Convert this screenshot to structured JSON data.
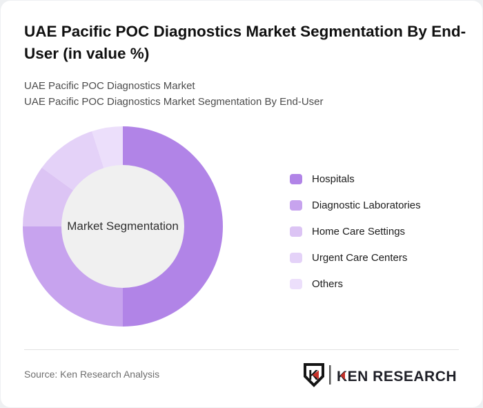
{
  "header": {
    "title": "UAE Pacific POC Diagnostics Market Segmentation By End-User (in value %)",
    "subtitle_line1": "UAE Pacific POC Diagnostics Market",
    "subtitle_line2": "UAE Pacific POC Diagnostics Market Segmentation By End-User"
  },
  "chart_data": {
    "type": "pie",
    "variant": "donut",
    "title": "UAE Pacific POC Diagnostics Market Segmentation By End-User (in value %)",
    "center_label": "Market Segmentation",
    "categories": [
      "Hospitals",
      "Diagnostic Laboratories",
      "Home Care Settings",
      "Urgent Care Centers",
      "Others"
    ],
    "values": [
      50,
      25,
      10,
      10,
      5
    ],
    "unit": "value %",
    "colors": [
      "#b184e7",
      "#c7a3ee",
      "#dcc4f4",
      "#e4d2f8",
      "#ecdffb"
    ],
    "inner_circle_color": "#f0f0f0",
    "start_angle_deg": 0,
    "direction": "clockwise",
    "legend_position": "right"
  },
  "footer": {
    "source_text": "Source: Ken Research Analysis",
    "brand_emblem_letter": "K",
    "brand_wordmark": "KEN RESEARCH",
    "brand_red": "#c63028",
    "brand_text_color": "#1e1f27"
  }
}
